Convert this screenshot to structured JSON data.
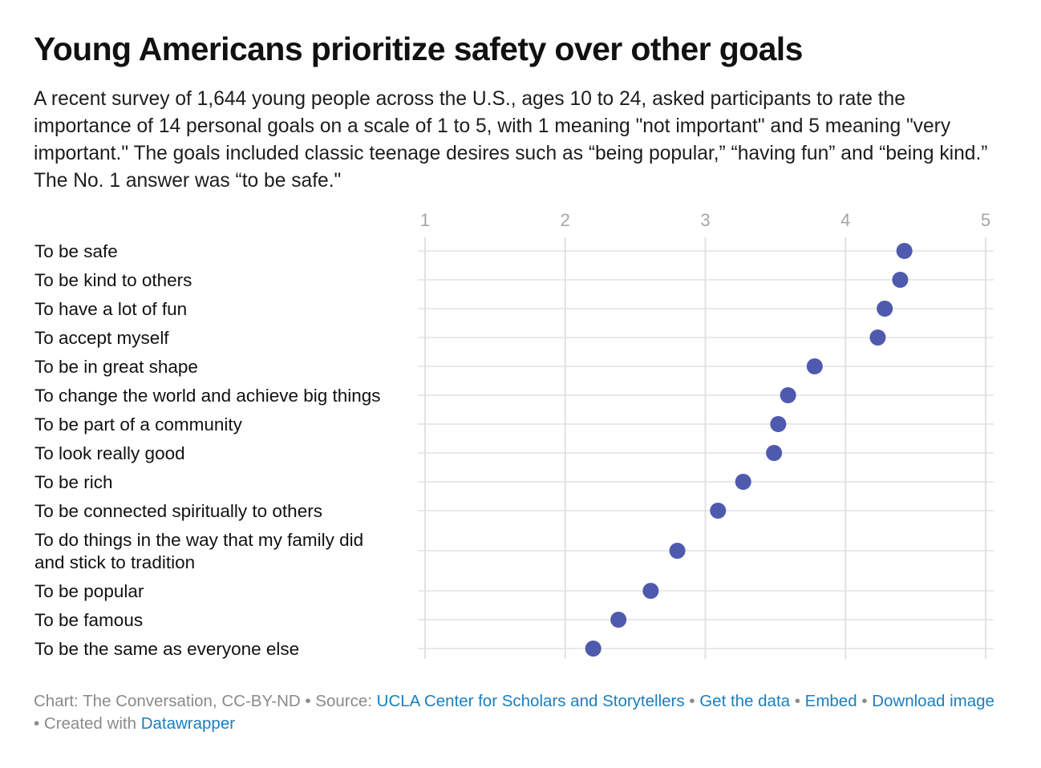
{
  "title": "Young Americans prioritize safety over other goals",
  "subtitle": "A recent survey of 1,644 young people across the U.S., ages 10 to 24, asked participants to rate the importance of 14 personal goals on a scale of 1 to 5, with 1 meaning \"not important\" and 5 meaning \"very important.\" The goals included classic teenage desires such as “being popular,” “having fun” and “being kind.” The No. 1 answer was “to be safe.\"",
  "footer": {
    "chart_credit": "Chart: The Conversation, CC-BY-ND",
    "source_label": "Source:",
    "source_link": "UCLA Center for Scholars and Storytellers",
    "get_data": "Get the data",
    "embed": "Embed",
    "download": "Download image",
    "created_with": "Created with",
    "tool_link": "Datawrapper",
    "sep": "•"
  },
  "colors": {
    "dot": "#4e5aae",
    "grid": "#e2e2e2",
    "tick_text": "#a6a6a6",
    "link": "#1a7ec0"
  },
  "chart_data": {
    "type": "scatter",
    "title": "Young Americans prioritize safety over other goals",
    "xlabel": "",
    "ylabel": "",
    "xlim": [
      1,
      5
    ],
    "xticks": [
      "1",
      "2",
      "3",
      "4",
      "5"
    ],
    "grid": true,
    "categories": [
      [
        "To be safe"
      ],
      [
        "To be kind to others"
      ],
      [
        "To have a lot of fun"
      ],
      [
        "To accept myself"
      ],
      [
        "To be in great shape"
      ],
      [
        "To change the world and achieve big things"
      ],
      [
        "To be part of a community"
      ],
      [
        "To look really good"
      ],
      [
        "To be rich"
      ],
      [
        "To be connected spiritually to others"
      ],
      [
        "To do things in the way that my family did",
        "and stick to tradition"
      ],
      [
        "To be popular"
      ],
      [
        "To be famous"
      ],
      [
        "To be the same as everyone else"
      ]
    ],
    "values": [
      4.42,
      4.39,
      4.28,
      4.23,
      3.78,
      3.59,
      3.52,
      3.49,
      3.27,
      3.09,
      2.8,
      2.61,
      2.38,
      2.2
    ]
  }
}
